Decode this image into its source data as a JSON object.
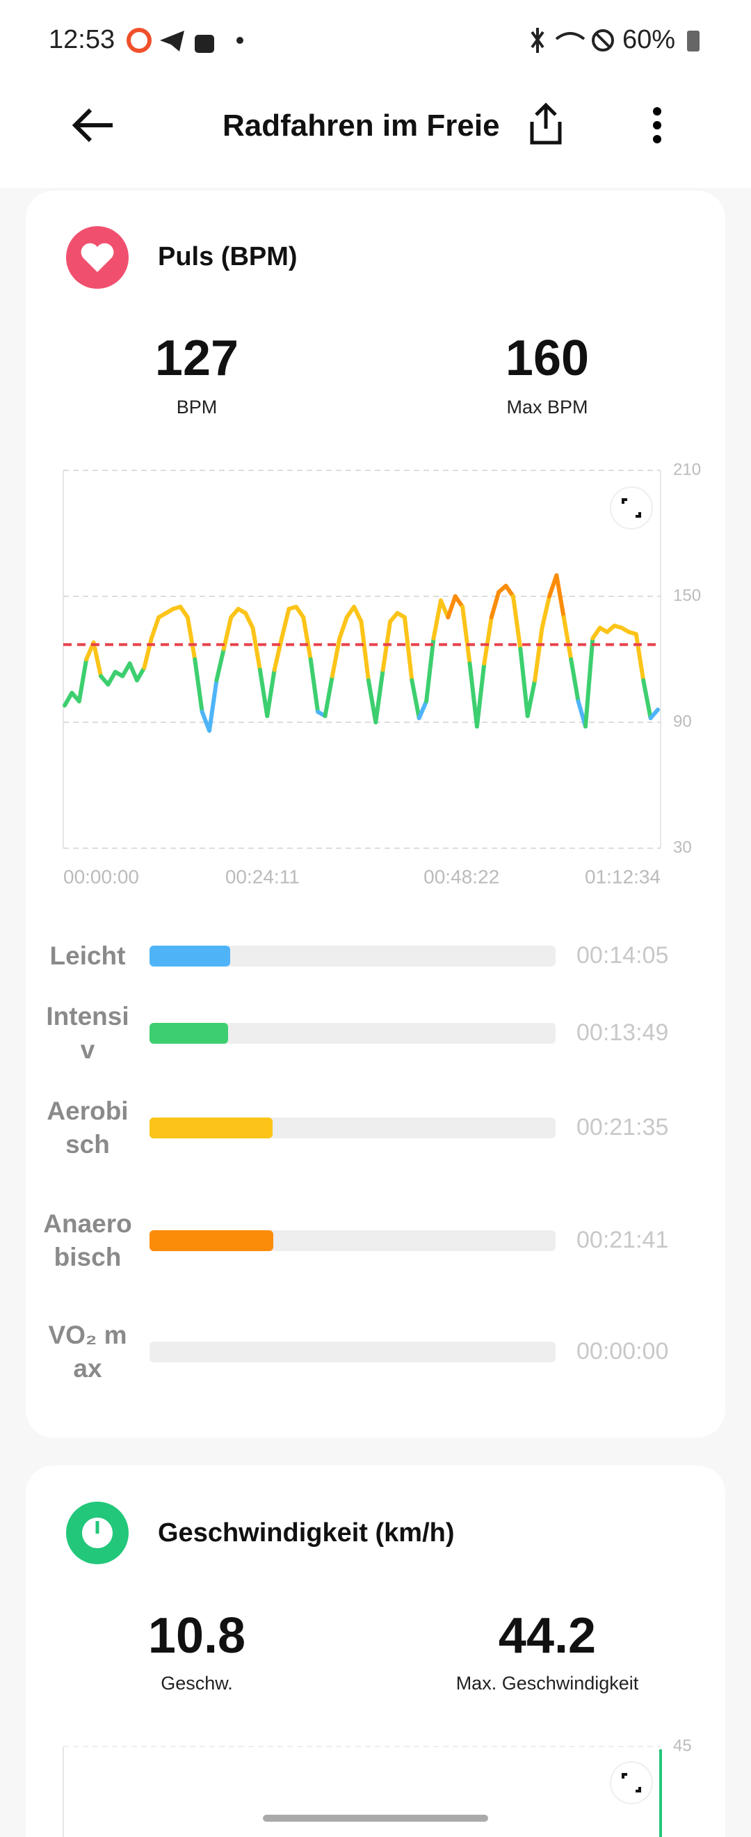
{
  "status_bar": {
    "time": "12:53",
    "battery": "60%"
  },
  "header": {
    "title": "Radfahren im Freie"
  },
  "heart_rate": {
    "title": "Puls (BPM)",
    "avg": {
      "value": 127,
      "label": "BPM"
    },
    "max": {
      "value": 160,
      "label": "Max BPM"
    },
    "chart": {
      "type": "line",
      "ylim": [
        30,
        210
      ],
      "yticks": [
        30,
        90,
        150,
        210
      ],
      "xtick_labels": [
        "00:00:00",
        "00:24:11",
        "00:48:22",
        "01:12:34"
      ],
      "values": [
        98,
        104,
        100,
        120,
        128,
        112,
        108,
        114,
        112,
        118,
        110,
        116,
        130,
        140,
        142,
        144,
        145,
        140,
        120,
        95,
        86,
        110,
        125,
        140,
        144,
        142,
        135,
        115,
        93,
        115,
        130,
        144,
        145,
        140,
        120,
        95,
        93,
        112,
        130,
        140,
        145,
        138,
        110,
        90,
        115,
        138,
        142,
        140,
        110,
        92,
        100,
        130,
        148,
        140,
        150,
        145,
        118,
        88,
        118,
        140,
        152,
        155,
        150,
        125,
        93,
        110,
        135,
        150,
        160,
        140,
        120,
        100,
        88,
        130,
        135,
        133,
        136,
        135,
        133,
        132,
        110,
        92,
        96
      ]
    },
    "zones": [
      {
        "label": "Leicht",
        "time": "00:14:05",
        "color": "#4fb4f7"
      },
      {
        "label": "Intensiv",
        "time": "00:13:49",
        "color": "#3dcf6f"
      },
      {
        "label": "Aerobisch",
        "time": "00:21:35",
        "color": "#fcc419"
      },
      {
        "label": "Anaerobisch",
        "time": "00:21:41",
        "color": "#fb8c0a"
      },
      {
        "label": "VO₂ max",
        "time": "00:00:00",
        "color": "#aaaaaa"
      }
    ]
  },
  "speed": {
    "title": "Geschwindigkeit (km/h)",
    "avg": {
      "value": 10.8,
      "label": "Geschw."
    },
    "max": {
      "value": 44.2,
      "label": "Max. Geschwindigkeit"
    },
    "chart": {
      "yticks": [
        45
      ]
    }
  }
}
